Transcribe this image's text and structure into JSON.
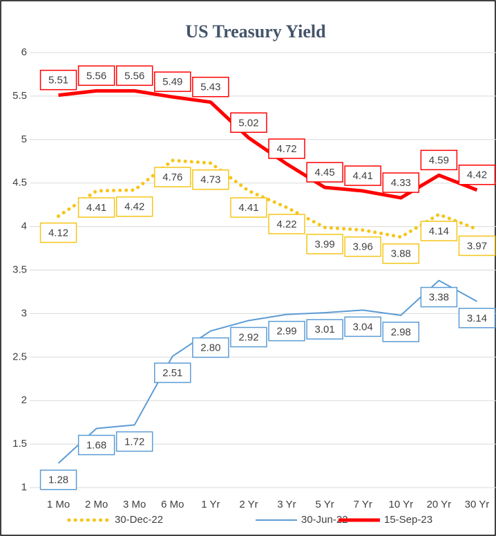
{
  "chart_data": {
    "type": "line",
    "title": "US Treasury Yield",
    "categories": [
      "1 Mo",
      "2 Mo",
      "3 Mo",
      "6 Mo",
      "1 Yr",
      "2 Yr",
      "3 Yr",
      "5 Yr",
      "7 Yr",
      "10 Yr",
      "20 Yr",
      "30 Yr"
    ],
    "series": [
      {
        "name": "30-Dec-22",
        "color": "#f5c518",
        "style": "dotted",
        "values": [
          4.12,
          4.41,
          4.42,
          4.76,
          4.73,
          4.41,
          4.22,
          3.99,
          3.96,
          3.88,
          4.14,
          3.97
        ]
      },
      {
        "name": "30-Jun-22",
        "color": "#5b9bd5",
        "style": "solid",
        "values": [
          1.28,
          1.68,
          1.72,
          2.51,
          2.8,
          2.92,
          2.99,
          3.01,
          3.04,
          2.98,
          3.38,
          3.14
        ],
        "value_labels": [
          "1.28",
          "1.68",
          "1.72",
          "2.51",
          "2.80",
          "2.92",
          "2.99",
          "3.01",
          "3.04",
          "2.98",
          "3.38",
          "3.14"
        ]
      },
      {
        "name": "15-Sep-23",
        "color": "#ff0000",
        "style": "thick",
        "values": [
          5.51,
          5.56,
          5.56,
          5.49,
          5.43,
          5.02,
          4.72,
          4.45,
          4.41,
          4.33,
          4.59,
          4.42
        ]
      }
    ],
    "ylim": [
      1,
      6
    ],
    "yticks": [
      1,
      1.5,
      2,
      2.5,
      3,
      3.5,
      4,
      4.5,
      5,
      5.5,
      6
    ],
    "grid": true,
    "legend": "bottom"
  }
}
